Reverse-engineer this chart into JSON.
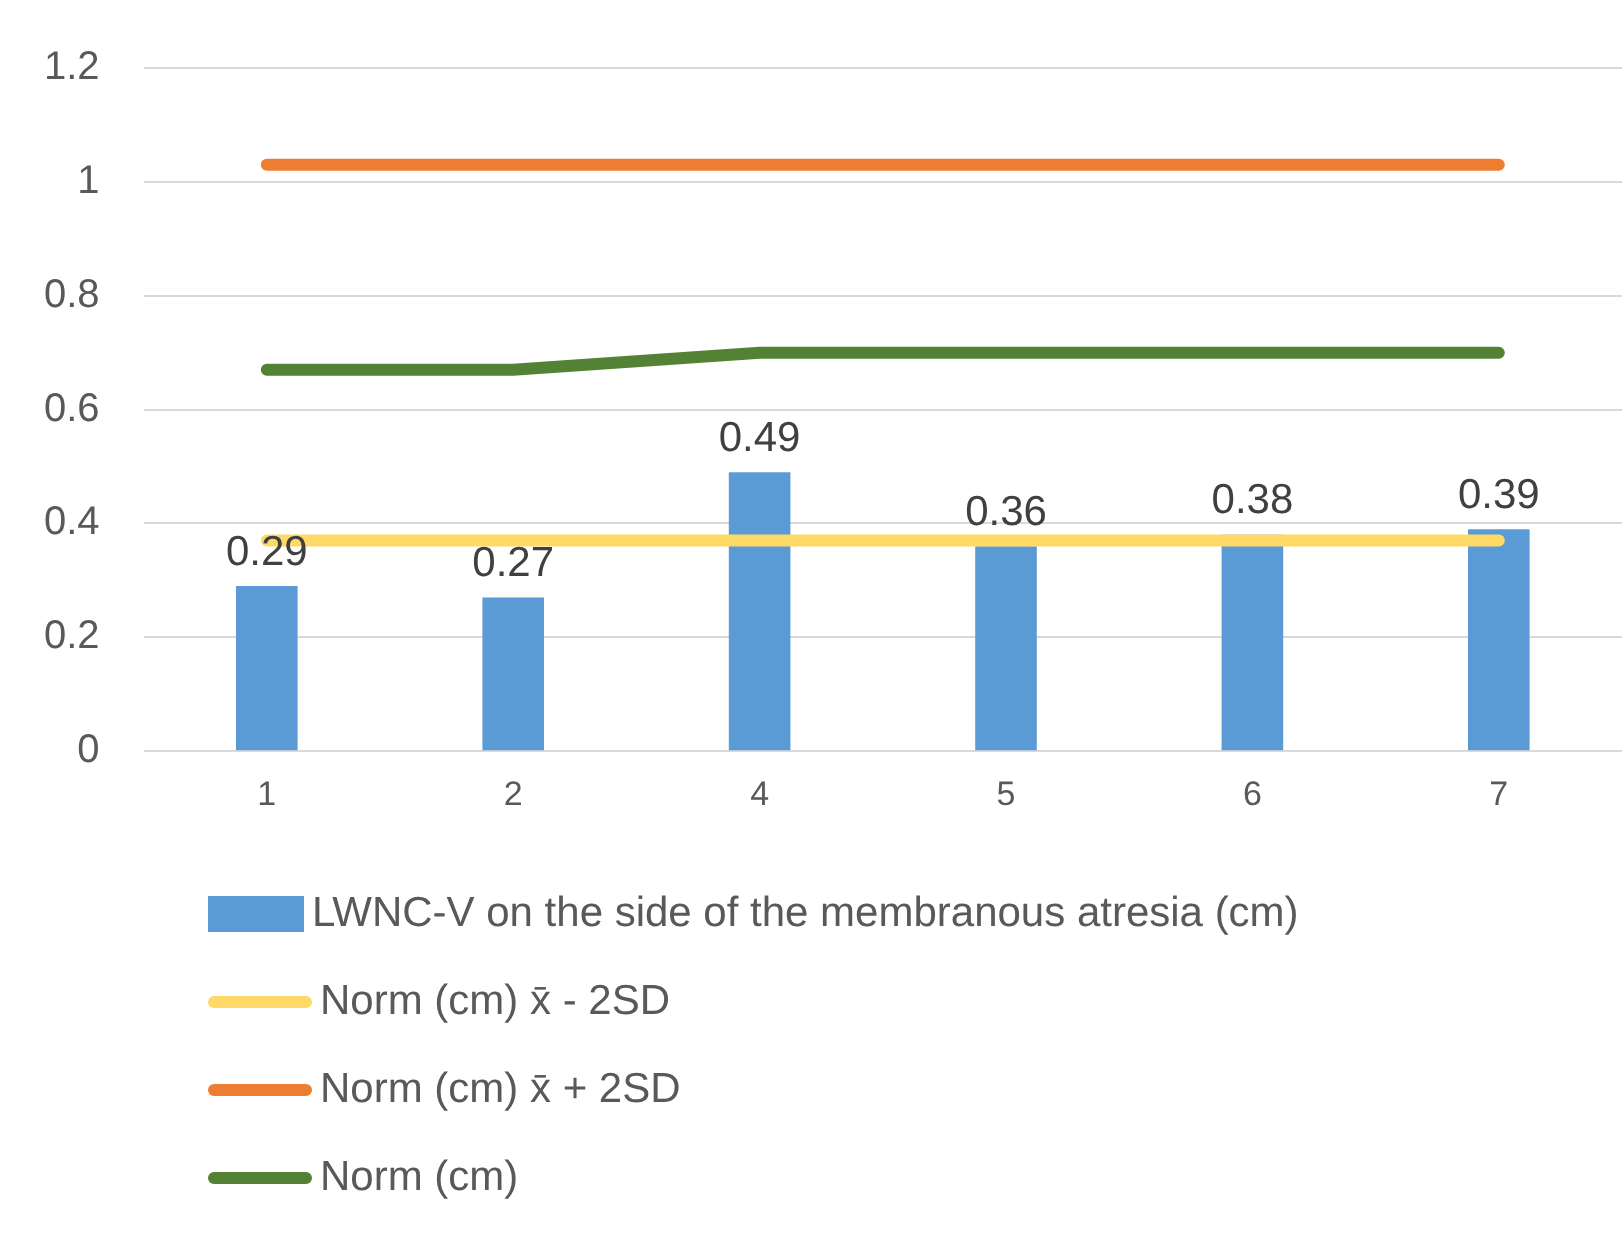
{
  "chart_data": {
    "type": "bar",
    "categories": [
      "1",
      "2",
      "4",
      "5",
      "6",
      "7"
    ],
    "series": [
      {
        "name": "LWNC-V on the side of the membranous atresia (cm)",
        "color": "#5b9bd5",
        "values": [
          0.29,
          0.27,
          0.49,
          0.36,
          0.38,
          0.39
        ],
        "data_labels": true
      },
      {
        "name": "Norm (cm) x̄ - 2SD",
        "type": "line",
        "color": "#ffd966",
        "values": [
          0.37,
          0.37,
          0.37,
          0.37,
          0.37,
          0.37
        ]
      },
      {
        "name": "Norm (cm) x̄ + 2SD",
        "type": "line",
        "color": "#ed7d31",
        "values": [
          1.03,
          1.03,
          1.03,
          1.03,
          1.03,
          1.03
        ]
      },
      {
        "name": "Norm (cm)",
        "type": "line",
        "color": "#548235",
        "values": [
          0.67,
          0.67,
          0.7,
          0.7,
          0.7,
          0.7
        ]
      }
    ],
    "ylim": [
      0,
      1.2
    ],
    "yticks": [
      0,
      0.2,
      0.4,
      0.6,
      0.8,
      1,
      1.2
    ],
    "grid": "y",
    "legend": "bottom",
    "marker": "none",
    "line_style": "solid"
  }
}
